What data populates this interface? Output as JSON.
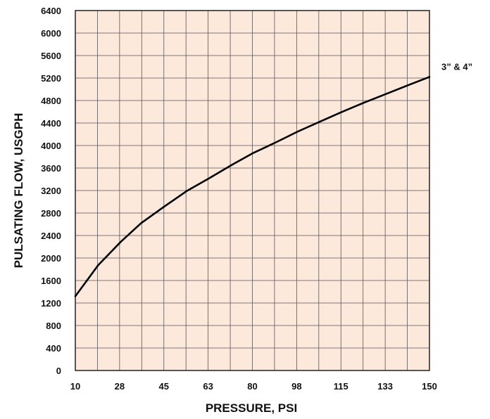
{
  "chart_data": {
    "type": "line",
    "title": "",
    "xlabel": "PRESSURE, PSI",
    "ylabel": "PULSATING FLOW, USGPH",
    "xlim": [
      10,
      150
    ],
    "ylim": [
      0,
      6400
    ],
    "x_tick_labels": [
      "10",
      "28",
      "45",
      "63",
      "80",
      "98",
      "115",
      "133",
      "150"
    ],
    "y_tick_labels": [
      "0",
      "400",
      "800",
      "1200",
      "1600",
      "2000",
      "2400",
      "2800",
      "3200",
      "3600",
      "4000",
      "4400",
      "4800",
      "5200",
      "5600",
      "6000",
      "6400"
    ],
    "grid": true,
    "plot_background": "#fde8dc",
    "grid_color": "#555555",
    "line_color": "#000000",
    "series": [
      {
        "label": "3” & 4”",
        "x": [
          10,
          19,
          28,
          36,
          45,
          54,
          63,
          72,
          80,
          89,
          98,
          107,
          115,
          124,
          133,
          142,
          150
        ],
        "y": [
          1320,
          1870,
          2290,
          2620,
          2910,
          3190,
          3420,
          3660,
          3860,
          4050,
          4250,
          4430,
          4590,
          4760,
          4920,
          5080,
          5220
        ]
      }
    ]
  }
}
